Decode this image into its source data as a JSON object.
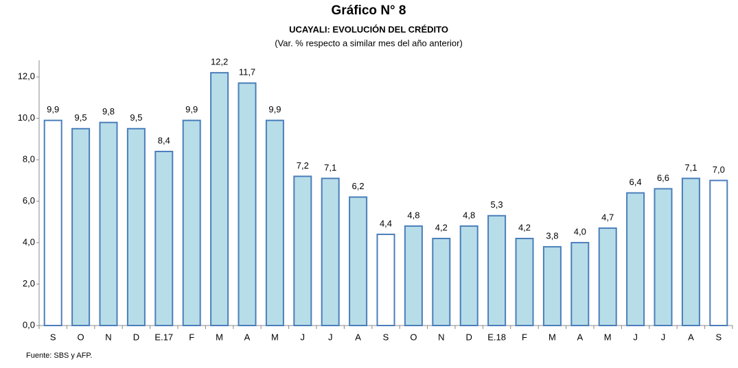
{
  "chart_data": {
    "type": "bar",
    "title": "Gráfico N° 8",
    "subtitle": "UCAYALI: EVOLUCIÓN DEL CRÉDITO",
    "note": "(Var. % respecto a similar mes del año anterior)",
    "source": "Fuente: SBS y AFP.",
    "categories": [
      "S",
      "O",
      "N",
      "D",
      "E.17",
      "F",
      "M",
      "A",
      "M",
      "J",
      "J",
      "A",
      "S",
      "O",
      "N",
      "D",
      "E.18",
      "F",
      "M",
      "A",
      "M",
      "J",
      "J",
      "A",
      "S"
    ],
    "values": [
      9.9,
      9.5,
      9.8,
      9.5,
      8.4,
      9.9,
      12.2,
      11.7,
      9.9,
      7.2,
      7.1,
      6.2,
      4.4,
      4.8,
      4.2,
      4.8,
      5.3,
      4.2,
      3.8,
      4.0,
      4.7,
      6.4,
      6.6,
      7.1,
      7.0
    ],
    "value_labels": [
      "9,9",
      "9,5",
      "9,8",
      "9,5",
      "8,4",
      "9,9",
      "12,2",
      "11,7",
      "9,9",
      "7,2",
      "7,1",
      "6,2",
      "4,4",
      "4,8",
      "4,2",
      "4,8",
      "5,3",
      "4,2",
      "3,8",
      "4,0",
      "4,7",
      "6,4",
      "6,6",
      "7,1",
      "7,0"
    ],
    "colors": [
      "#ffffff",
      "#b7dde8",
      "#b7dde8",
      "#b7dde8",
      "#b7dde8",
      "#b7dde8",
      "#b7dde8",
      "#b7dde8",
      "#b7dde8",
      "#b7dde8",
      "#b7dde8",
      "#b7dde8",
      "#ffffff",
      "#b7dde8",
      "#b7dde8",
      "#b7dde8",
      "#b7dde8",
      "#b7dde8",
      "#b7dde8",
      "#b7dde8",
      "#b7dde8",
      "#b7dde8",
      "#b7dde8",
      "#b7dde8",
      "#ffffff"
    ],
    "edge_color": "#4a7ebb",
    "ylim": [
      0,
      12.8
    ],
    "yticks": [
      {
        "value": 0,
        "label": "0,0"
      },
      {
        "value": 2,
        "label": "2,0"
      },
      {
        "value": 4,
        "label": "4,0"
      },
      {
        "value": 6,
        "label": "6,0"
      },
      {
        "value": 8,
        "label": "8,0"
      },
      {
        "value": 10,
        "label": "10,0"
      },
      {
        "value": 12,
        "label": "12,0"
      }
    ],
    "grid": false
  }
}
